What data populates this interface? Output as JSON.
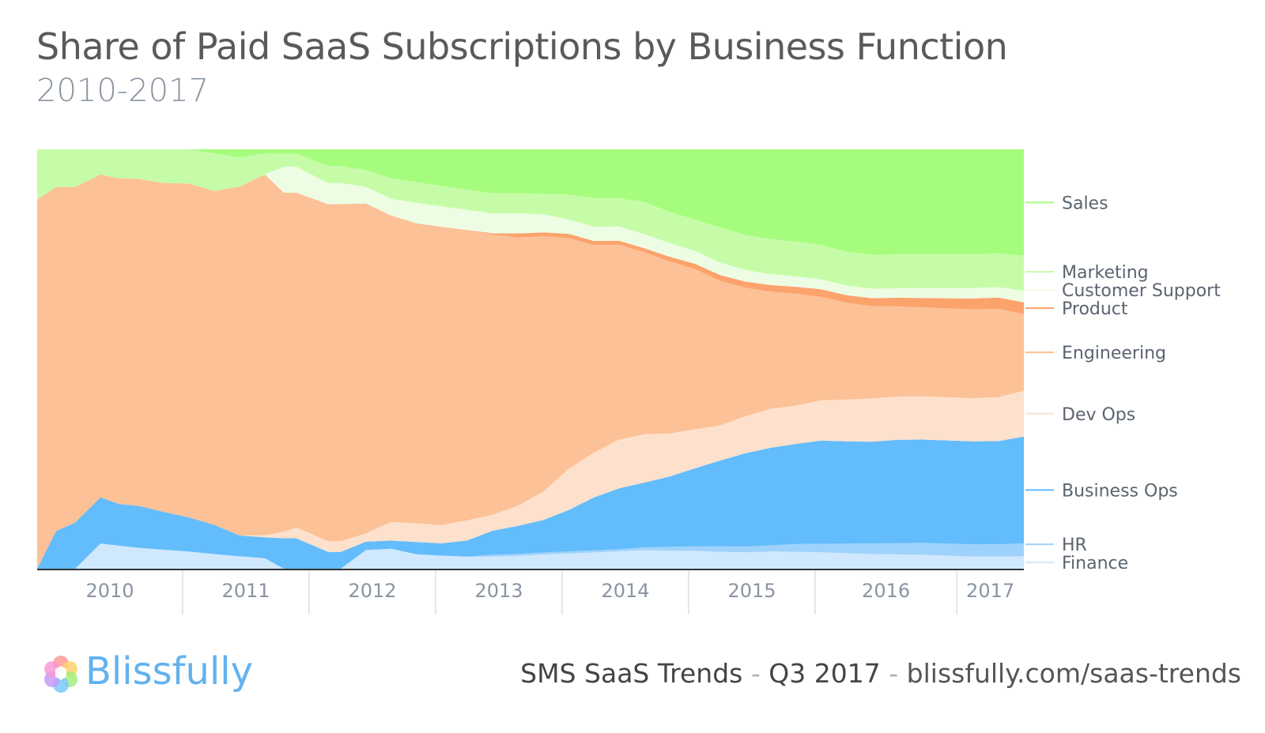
{
  "title": "Share of Paid SaaS Subscriptions by Business Function",
  "subtitle": "2010-2017",
  "footer": {
    "brand": "Blissfully",
    "report": "SMS SaaS Trends",
    "separator": "-",
    "quarter": "Q3 2017",
    "url": "blissfully.com/saas-trends"
  },
  "colors": {
    "Finance": "#cfe8fd",
    "HR": "#9fd2fb",
    "Business Ops": "#63bcfb",
    "Dev Ops": "#fde1cc",
    "Engineering": "#fcc196",
    "Product": "#fca36c",
    "Customer Support": "#edfde4",
    "Marketing": "#c6fca8",
    "Sales": "#a6fd7d"
  },
  "chart_data": {
    "type": "area",
    "stacked": true,
    "normalized": true,
    "x_tick_labels": [
      "2010",
      "2011",
      "2012",
      "2013",
      "2014",
      "2015",
      "2016",
      "2017"
    ],
    "ylim": [
      0,
      100
    ],
    "legend_position": "right",
    "x": [
      2009.6,
      2009.75,
      2009.9,
      2010.1,
      2010.25,
      2010.4,
      2010.6,
      2010.8,
      2011.0,
      2011.2,
      2011.4,
      2011.55,
      2011.65,
      2011.9,
      2012.0,
      2012.2,
      2012.4,
      2012.6,
      2012.8,
      2013.0,
      2013.2,
      2013.4,
      2013.6,
      2013.8,
      2014.0,
      2014.2,
      2014.4,
      2014.6,
      2014.8,
      2015.0,
      2015.2,
      2015.4,
      2015.6,
      2015.8,
      2016.0,
      2016.2,
      2016.4,
      2016.6,
      2016.8,
      2017.0,
      2017.2,
      2017.4
    ],
    "series": [
      {
        "name": "Finance",
        "values": [
          0,
          0,
          0,
          6,
          5.5,
          5,
          4.5,
          4,
          3.5,
          3,
          2.5,
          0,
          0,
          0,
          0,
          4.5,
          4.8,
          3.5,
          3.2,
          3.0,
          3.0,
          3.2,
          3.5,
          3.7,
          4.0,
          4.3,
          4.6,
          4.6,
          4.6,
          4.3,
          4.2,
          4.4,
          4.4,
          4.3,
          4.1,
          3.9,
          3.8,
          3.7,
          3.5,
          3.2,
          3.2,
          3.2
        ]
      },
      {
        "name": "HR",
        "values": [
          0,
          0,
          0,
          0,
          0,
          0,
          0,
          0,
          0,
          0,
          0,
          0,
          0,
          0,
          0,
          0,
          0,
          0,
          0,
          0,
          0.5,
          0.5,
          0.5,
          0.5,
          0.5,
          0.5,
          0.7,
          1.0,
          1.1,
          1.4,
          1.5,
          1.6,
          2.0,
          2.2,
          2.5,
          2.8,
          3.0,
          3.2,
          3.2,
          3.3,
          3.3,
          3.3
        ]
      },
      {
        "name": "Business Ops",
        "values": [
          0,
          9,
          11,
          11,
          10,
          10,
          9,
          8,
          7,
          5,
          5,
          7,
          7,
          4,
          4,
          2,
          2,
          3,
          3,
          4,
          6,
          7,
          8,
          10,
          13,
          15,
          16,
          18,
          20,
          22,
          24,
          25,
          26,
          27,
          27,
          27,
          27.5,
          27.5,
          27.5,
          27.5,
          27.5,
          27.5
        ]
      },
      {
        "name": "Dev Ops",
        "values": [
          0,
          0,
          0,
          0,
          0,
          0,
          0,
          0,
          0,
          0,
          0.5,
          1.5,
          2.5,
          2.5,
          2.5,
          2,
          4.5,
          4.5,
          4.5,
          5,
          4,
          5,
          7,
          10,
          11,
          12,
          12,
          11,
          10,
          9,
          9.5,
          10,
          10,
          10.5,
          11,
          11.5,
          11.5,
          11.5,
          11.5,
          11.5,
          11.7,
          11.8
        ]
      },
      {
        "name": "Engineering",
        "values": [
          88,
          82,
          80,
          77,
          78,
          78,
          78,
          78,
          80,
          84,
          86,
          78,
          77,
          80,
          80,
          79,
          74,
          73,
          73,
          72,
          70,
          67,
          63,
          56,
          51,
          48,
          45,
          44,
          41,
          37,
          33,
          30,
          29,
          27,
          25.5,
          24.5,
          24,
          23.7,
          23.7,
          23.7,
          23.5,
          19.8
        ]
      },
      {
        "name": "Product",
        "values": [
          0,
          0,
          0,
          0,
          0,
          0,
          0,
          0,
          0,
          0,
          0,
          0,
          0,
          0,
          0,
          0,
          0,
          0,
          0,
          0,
          0.3,
          1.0,
          1.0,
          1.0,
          1.0,
          1.0,
          1.0,
          1.2,
          1.4,
          1.5,
          1.6,
          1.7,
          1.8,
          2.0,
          2.0,
          2.1,
          2.3,
          2.5,
          2.7,
          2.9,
          3.0,
          3.0
        ]
      },
      {
        "name": "Customer Support",
        "values": [
          0,
          0,
          0,
          0,
          0,
          0,
          0,
          0,
          0,
          0,
          0,
          6,
          6,
          5,
          5,
          4,
          4,
          5,
          5,
          5,
          5,
          5,
          4.5,
          3.5,
          3.5,
          3.5,
          3.5,
          3.5,
          3.3,
          3.2,
          3.0,
          2.8,
          2.7,
          2.6,
          2.5,
          2.5,
          2.5,
          2.6,
          2.7,
          2.8,
          2.8,
          3.0
        ]
      },
      {
        "name": "Marketing",
        "values": [
          12,
          9,
          9,
          6,
          7,
          7,
          8,
          8,
          9,
          7,
          5,
          3,
          3,
          4,
          4,
          4,
          5,
          5,
          5,
          5,
          5,
          5,
          5,
          6,
          7,
          7,
          8,
          8,
          8,
          9,
          9,
          9,
          9,
          9,
          9,
          9,
          9,
          9,
          9,
          9,
          9,
          9
        ]
      },
      {
        "name": "Sales",
        "values": [
          0,
          0,
          0,
          0,
          0,
          0,
          0,
          0,
          1,
          2,
          1,
          1,
          1,
          4,
          4,
          5,
          7,
          8,
          9,
          10,
          11,
          11,
          11,
          11,
          12,
          12,
          13,
          16,
          18,
          20,
          22,
          23,
          24,
          25,
          27,
          28,
          28,
          28,
          28,
          28,
          27.7,
          27.4
        ]
      }
    ]
  }
}
